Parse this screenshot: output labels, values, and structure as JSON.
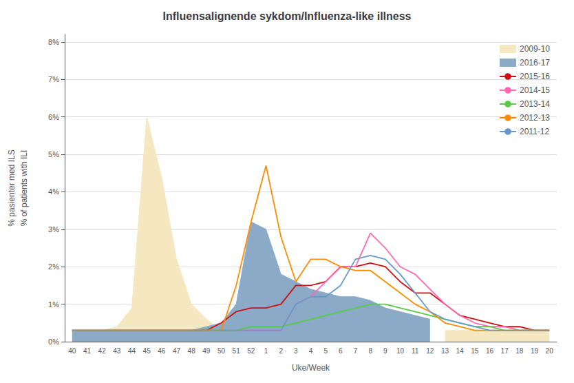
{
  "chart_data": {
    "type": "line",
    "title": "Influensalignende sykdom/Influenza-like illness",
    "xlabel": "Uke/Week",
    "ylabel": "% pasienter med ILS\n% of patients with ILI",
    "categories": [
      "40",
      "41",
      "42",
      "43",
      "44",
      "45",
      "46",
      "47",
      "48",
      "49",
      "50",
      "51",
      "52",
      "1",
      "2",
      "3",
      "4",
      "5",
      "6",
      "7",
      "8",
      "9",
      "10",
      "11",
      "12",
      "13",
      "14",
      "15",
      "16",
      "17",
      "18",
      "19",
      "20"
    ],
    "ylim": [
      0,
      0.082
    ],
    "yticks": [
      {
        "value": 0.0,
        "label": "0%"
      },
      {
        "value": 0.01,
        "label": "1%"
      },
      {
        "value": 0.02,
        "label": "2%"
      },
      {
        "value": 0.03,
        "label": "3%"
      },
      {
        "value": 0.04,
        "label": "4%"
      },
      {
        "value": 0.05,
        "label": "5%"
      },
      {
        "value": 0.06,
        "label": "6%"
      },
      {
        "value": 0.07,
        "label": "7%"
      },
      {
        "value": 0.08,
        "label": "8%"
      }
    ],
    "grid": true,
    "legend": "upper right",
    "series": [
      {
        "name": "2009-10",
        "type": "area",
        "color": "#F5E8C0",
        "values": [
          0.003,
          0.003,
          0.003,
          0.004,
          0.009,
          0.06,
          0.044,
          0.022,
          0.01,
          0.006,
          0.003,
          0.003,
          0.003,
          null,
          null,
          null,
          null,
          null,
          null,
          null,
          null,
          null,
          null,
          null,
          null,
          0.003,
          0.003,
          0.003,
          0.003,
          0.003,
          0.003,
          0.003,
          0.003
        ]
      },
      {
        "name": "2016-17",
        "type": "area",
        "color": "#8BAAC8",
        "values": [
          0.003,
          0.003,
          0.003,
          0.003,
          0.003,
          0.003,
          0.003,
          0.003,
          0.003,
          0.004,
          0.005,
          0.01,
          0.032,
          0.03,
          0.018,
          0.016,
          0.014,
          0.013,
          0.012,
          0.012,
          0.011,
          0.009,
          0.008,
          0.007,
          0.006,
          null,
          null,
          null,
          null,
          null,
          null,
          null,
          null
        ]
      },
      {
        "name": "2015-16",
        "type": "line",
        "color": "#CC1111",
        "values": [
          0.003,
          0.003,
          0.003,
          0.003,
          0.003,
          0.003,
          0.003,
          0.003,
          0.003,
          0.003,
          0.005,
          0.008,
          0.009,
          0.009,
          0.01,
          0.015,
          0.015,
          0.016,
          0.02,
          0.02,
          0.021,
          0.02,
          0.016,
          0.013,
          0.013,
          0.01,
          0.007,
          0.006,
          0.005,
          0.004,
          0.004,
          0.003,
          0.003
        ]
      },
      {
        "name": "2014-15",
        "type": "line",
        "color": "#FF69B4",
        "values": [
          0.003,
          0.003,
          0.003,
          0.003,
          0.003,
          0.003,
          0.003,
          0.003,
          0.003,
          0.003,
          0.003,
          0.003,
          0.003,
          0.003,
          0.003,
          0.01,
          0.012,
          0.016,
          0.02,
          0.02,
          0.029,
          0.025,
          0.02,
          0.018,
          0.014,
          0.01,
          0.007,
          0.005,
          0.004,
          0.004,
          0.003,
          0.003,
          0.003
        ]
      },
      {
        "name": "2013-14",
        "type": "line",
        "color": "#55CC44",
        "values": [
          0.003,
          0.003,
          0.003,
          0.003,
          0.003,
          0.003,
          0.003,
          0.003,
          0.003,
          0.003,
          0.003,
          0.003,
          0.004,
          0.004,
          0.004,
          0.005,
          0.006,
          0.007,
          0.008,
          0.009,
          0.01,
          0.01,
          0.009,
          0.008,
          0.007,
          0.006,
          0.005,
          0.004,
          0.004,
          0.003,
          0.003,
          0.003,
          0.003
        ]
      },
      {
        "name": "2012-13",
        "type": "line",
        "color": "#FF8C00",
        "values": [
          0.003,
          0.003,
          0.003,
          0.003,
          0.003,
          0.003,
          0.003,
          0.003,
          0.003,
          0.003,
          0.003,
          0.015,
          0.032,
          0.047,
          0.028,
          0.016,
          0.022,
          0.022,
          0.02,
          0.019,
          0.019,
          0.016,
          0.013,
          0.01,
          0.008,
          0.005,
          0.004,
          0.003,
          0.003,
          0.003,
          0.003,
          0.003,
          0.003
        ]
      },
      {
        "name": "2011-12",
        "type": "line",
        "color": "#6699CC",
        "values": [
          0.003,
          0.003,
          0.003,
          0.003,
          0.003,
          0.003,
          0.003,
          0.003,
          0.003,
          0.003,
          0.003,
          0.003,
          0.003,
          0.003,
          0.003,
          0.01,
          0.012,
          0.012,
          0.015,
          0.022,
          0.023,
          0.022,
          0.018,
          0.013,
          0.008,
          0.006,
          0.005,
          0.004,
          0.003,
          0.003,
          0.003,
          0.003,
          0.003
        ]
      }
    ]
  }
}
